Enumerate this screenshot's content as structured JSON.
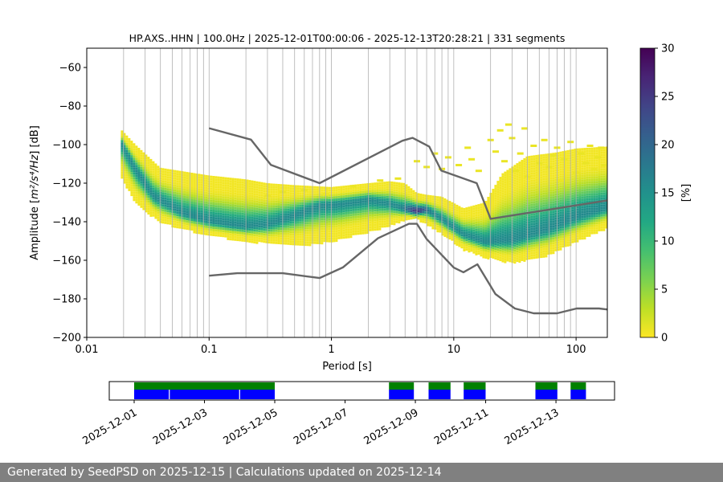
{
  "chart_data": {
    "type": "heatmap",
    "title": "HP.AXS..HHN | 100.0Hz | 2025-12-01T00:00:06 - 2025-12-13T20:28:21 | 331 segments",
    "xlabel": "Period [s]",
    "ylabel_parts": {
      "pre": "Amplitude [",
      "math": "m²/s⁴/Hz",
      "post": "] [dB]"
    },
    "x_scale": "log",
    "xlim": [
      0.01,
      180
    ],
    "ylim": [
      -200,
      -50
    ],
    "x_ticks": [
      {
        "value": 0.01,
        "label": "0.01"
      },
      {
        "value": 0.1,
        "label": "0.1"
      },
      {
        "value": 1,
        "label": "1"
      },
      {
        "value": 10,
        "label": "10"
      },
      {
        "value": 100,
        "label": "100"
      }
    ],
    "y_ticks": [
      {
        "value": -60,
        "label": "−60"
      },
      {
        "value": -80,
        "label": "−80"
      },
      {
        "value": -100,
        "label": "−100"
      },
      {
        "value": -120,
        "label": "−120"
      },
      {
        "value": -140,
        "label": "−140"
      },
      {
        "value": -160,
        "label": "−160"
      },
      {
        "value": -180,
        "label": "−180"
      },
      {
        "value": -200,
        "label": "−200"
      }
    ],
    "grid": "vertical, log minor",
    "colormap": "viridis_r",
    "colorbar": {
      "label": "[%]",
      "range": [
        0,
        30
      ],
      "ticks": [
        {
          "value": 0,
          "label": "0"
        },
        {
          "value": 5,
          "label": "5"
        },
        {
          "value": 10,
          "label": "10"
        },
        {
          "value": 15,
          "label": "15"
        },
        {
          "value": 20,
          "label": "20"
        },
        {
          "value": 25,
          "label": "25"
        },
        {
          "value": 30,
          "label": "30"
        }
      ]
    },
    "mode_curve": [
      [
        0.019,
        -98
      ],
      [
        0.025,
        -112
      ],
      [
        0.035,
        -126
      ],
      [
        0.06,
        -135
      ],
      [
        0.1,
        -139
      ],
      [
        0.15,
        -141
      ],
      [
        0.2,
        -142
      ],
      [
        0.3,
        -141
      ],
      [
        0.5,
        -136
      ],
      [
        0.8,
        -131
      ],
      [
        1.2,
        -130
      ],
      [
        2,
        -128
      ],
      [
        3,
        -130
      ],
      [
        4,
        -133
      ],
      [
        5,
        -134
      ],
      [
        6,
        -133
      ],
      [
        8,
        -138
      ],
      [
        12,
        -146
      ],
      [
        18,
        -150
      ],
      [
        30,
        -149
      ],
      [
        60,
        -143
      ],
      [
        100,
        -137
      ],
      [
        180,
        -132
      ]
    ],
    "upper_curve": [
      [
        0.019,
        -92
      ],
      [
        0.025,
        -100
      ],
      [
        0.04,
        -112
      ],
      [
        0.1,
        -116
      ],
      [
        0.2,
        -118
      ],
      [
        0.3,
        -120
      ],
      [
        0.5,
        -121
      ],
      [
        1,
        -122
      ],
      [
        2,
        -120
      ],
      [
        3,
        -119
      ],
      [
        4,
        -120
      ],
      [
        5,
        -125
      ],
      [
        6,
        -126
      ],
      [
        8,
        -127
      ],
      [
        12,
        -133
      ],
      [
        18,
        -130
      ],
      [
        25,
        -115
      ],
      [
        40,
        -106
      ],
      [
        70,
        -104
      ],
      [
        100,
        -102
      ],
      [
        180,
        -101
      ]
    ],
    "lower_curve": [
      [
        0.019,
        -116
      ],
      [
        0.025,
        -130
      ],
      [
        0.04,
        -140
      ],
      [
        0.1,
        -147
      ],
      [
        0.3,
        -151
      ],
      [
        0.6,
        -152
      ],
      [
        1,
        -150
      ],
      [
        2,
        -145
      ],
      [
        3,
        -142
      ],
      [
        4,
        -139
      ],
      [
        5,
        -138
      ],
      [
        6,
        -141
      ],
      [
        8,
        -146
      ],
      [
        12,
        -154
      ],
      [
        18,
        -158
      ],
      [
        30,
        -161
      ],
      [
        60,
        -157
      ],
      [
        100,
        -150
      ],
      [
        180,
        -143
      ]
    ],
    "sparse_points": [
      [
        5,
        -108
      ],
      [
        6,
        -111
      ],
      [
        7,
        -104
      ],
      [
        8,
        -112
      ],
      [
        9,
        -106
      ],
      [
        11,
        -110
      ],
      [
        13,
        -101
      ],
      [
        14,
        -107
      ],
      [
        16,
        -113
      ],
      [
        20,
        -97
      ],
      [
        22,
        -103
      ],
      [
        24,
        -92
      ],
      [
        26,
        -108
      ],
      [
        28,
        -89
      ],
      [
        30,
        -96
      ],
      [
        32,
        -113
      ],
      [
        35,
        -104
      ],
      [
        38,
        -91
      ],
      [
        40,
        -116
      ],
      [
        45,
        -100
      ],
      [
        50,
        -109
      ],
      [
        55,
        -97
      ],
      [
        60,
        -111
      ],
      [
        65,
        -105
      ],
      [
        70,
        -101
      ],
      [
        75,
        -118
      ],
      [
        80,
        -107
      ],
      [
        90,
        -98
      ],
      [
        100,
        -114
      ],
      [
        110,
        -104
      ],
      [
        120,
        -109
      ],
      [
        130,
        -100
      ],
      [
        140,
        -112
      ],
      [
        150,
        -106
      ],
      [
        160,
        -101
      ],
      [
        170,
        -110
      ],
      [
        0.3,
        -126
      ],
      [
        0.4,
        -124
      ],
      [
        0.6,
        -123
      ],
      [
        0.9,
        -125
      ],
      [
        1.5,
        -121
      ],
      [
        2.5,
        -118
      ],
      [
        3.5,
        -117
      ]
    ],
    "nhnm": {
      "x": [
        0.1,
        0.22,
        0.32,
        0.8,
        3.8,
        4.6,
        6.3,
        7.9,
        15.4,
        20,
        354.8
      ],
      "y": [
        -168,
        -166.7,
        -166.7,
        -169.2,
        -143,
        -141,
        -149.5,
        -153,
        -162,
        -177,
        -185
      ]
    },
    "nlnm": {
      "x": [
        0.1,
        0.22,
        0.32,
        0.8,
        3.8,
        4.6,
        6.3,
        7.9,
        15.4,
        20,
        354.8
      ],
      "y": [
        -91.5,
        -97.4,
        -110.5,
        -120,
        -98,
        -96.5,
        -101,
        -113.5,
        -120,
        -138.5,
        -126
      ]
    },
    "nlnm_full": {
      "x": [
        0.1,
        0.17,
        0.4,
        0.8,
        1.24,
        2.4,
        4.3,
        5,
        6,
        10,
        12,
        15.6,
        21.9,
        31.6,
        45,
        70,
        101,
        154,
        179
      ],
      "y": [
        -168,
        -166.7,
        -166.7,
        -169.2,
        -163.7,
        -148.6,
        -141.1,
        -141.1,
        -149,
        -163.8,
        -166.2,
        -162.1,
        -177.5,
        -185,
        -187.5,
        -187.5,
        -185,
        -185,
        -185.5
      ]
    },
    "nhnm_full": {
      "x": [
        0.1,
        0.22,
        0.32,
        0.8,
        3.8,
        4.6,
        6.3,
        7.9,
        15.4,
        20,
        179
      ],
      "y": [
        -91.5,
        -97.4,
        -110.5,
        -120,
        -98,
        -96.5,
        -101,
        -113.5,
        -120,
        -138.5,
        -129
      ]
    }
  },
  "coverage": {
    "ticks": [
      "2025-12-01",
      "2025-12-03",
      "2025-12-05",
      "2025-12-07",
      "2025-12-09",
      "2025-12-11",
      "2025-12-13"
    ],
    "start": "2025-11-30T07:00:00",
    "end": "2025-12-14T16:00:00",
    "data_spans": [
      [
        "2025-12-01T00:00:06",
        "2025-12-05T00:00:00"
      ],
      [
        "2025-12-08T06:00:00",
        "2025-12-08T23:00:00"
      ],
      [
        "2025-12-09T09:00:00",
        "2025-12-10T00:00:00"
      ],
      [
        "2025-12-10T09:00:00",
        "2025-12-11T00:00:00"
      ],
      [
        "2025-12-12T10:00:00",
        "2025-12-13T01:00:00"
      ],
      [
        "2025-12-13T10:00:00",
        "2025-12-13T20:28:21"
      ]
    ],
    "gaps": [
      "2025-12-02T00:00:00",
      "2025-12-04T00:00:00"
    ],
    "colors": {
      "data": "#0000ff",
      "processed": "#008000"
    }
  },
  "footer": {
    "text": "Generated by SeedPSD on 2025-12-15 | Calculations updated on 2025-12-14"
  }
}
